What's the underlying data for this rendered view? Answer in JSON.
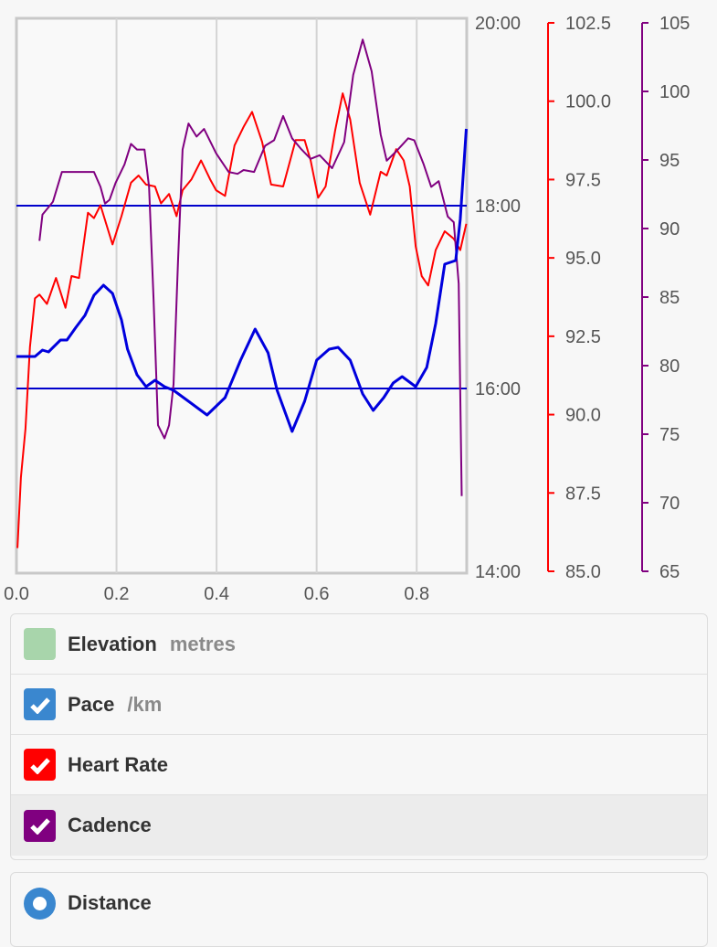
{
  "chart_data": {
    "type": "line",
    "xlim": [
      0,
      0.9
    ],
    "x_ticks": [
      "0.0",
      "0.2",
      "0.4",
      "0.6",
      "0.8"
    ],
    "x_tick_values": [
      0,
      0.2,
      0.4,
      0.6,
      0.8
    ],
    "axes": {
      "pace": {
        "ticks": [
          "20:00",
          "18:00",
          "16:00",
          "14:00"
        ],
        "tick_values": [
          20,
          18,
          16,
          14
        ],
        "range": [
          14,
          20
        ],
        "color": "#0000dd",
        "gridlines": [
          18,
          16
        ]
      },
      "heart_rate": {
        "ticks": [
          "102.5",
          "100.0",
          "97.5",
          "95.0",
          "92.5",
          "90.0",
          "87.5",
          "85.0"
        ],
        "tick_values": [
          102.5,
          100,
          97.5,
          95,
          92.5,
          90,
          87.5,
          85
        ],
        "range": [
          85,
          102.5
        ],
        "color": "#ff0000"
      },
      "cadence": {
        "ticks": [
          "105",
          "100",
          "95",
          "90",
          "85",
          "80",
          "75",
          "70",
          "65"
        ],
        "tick_values": [
          105,
          100,
          95,
          90,
          85,
          80,
          75,
          70,
          65
        ],
        "range": [
          65,
          105
        ],
        "color": "#800080"
      }
    },
    "series": [
      {
        "name": "Pace",
        "axis": "pace",
        "color": "#0000dd",
        "points": [
          [
            0,
            16.35
          ],
          [
            0.037,
            16.35
          ],
          [
            0.052,
            16.42
          ],
          [
            0.064,
            16.4
          ],
          [
            0.088,
            16.53
          ],
          [
            0.101,
            16.53
          ],
          [
            0.119,
            16.67
          ],
          [
            0.137,
            16.8
          ],
          [
            0.155,
            17.02
          ],
          [
            0.174,
            17.13
          ],
          [
            0.192,
            17.04
          ],
          [
            0.21,
            16.75
          ],
          [
            0.222,
            16.43
          ],
          [
            0.241,
            16.15
          ],
          [
            0.259,
            16.02
          ],
          [
            0.277,
            16.09
          ],
          [
            0.296,
            16.02
          ],
          [
            0.314,
            15.98
          ],
          [
            0.344,
            15.86
          ],
          [
            0.381,
            15.71
          ],
          [
            0.417,
            15.9
          ],
          [
            0.448,
            16.31
          ],
          [
            0.477,
            16.65
          ],
          [
            0.503,
            16.39
          ],
          [
            0.521,
            15.98
          ],
          [
            0.551,
            15.53
          ],
          [
            0.576,
            15.86
          ],
          [
            0.6,
            16.31
          ],
          [
            0.625,
            16.43
          ],
          [
            0.643,
            16.45
          ],
          [
            0.667,
            16.31
          ],
          [
            0.692,
            15.94
          ],
          [
            0.713,
            15.76
          ],
          [
            0.734,
            15.9
          ],
          [
            0.753,
            16.06
          ],
          [
            0.771,
            16.13
          ],
          [
            0.798,
            16.02
          ],
          [
            0.82,
            16.23
          ],
          [
            0.838,
            16.71
          ],
          [
            0.856,
            17.36
          ],
          [
            0.878,
            17.4
          ],
          [
            0.887,
            17.85
          ],
          [
            0.899,
            18.84
          ]
        ]
      },
      {
        "name": "Heart Rate",
        "axis": "heart_rate",
        "color": "#ff0000",
        "points": [
          [
            0.002,
            85.74
          ],
          [
            0.009,
            88.0
          ],
          [
            0.018,
            89.55
          ],
          [
            0.027,
            92.16
          ],
          [
            0.037,
            93.71
          ],
          [
            0.046,
            93.83
          ],
          [
            0.061,
            93.53
          ],
          [
            0.079,
            94.36
          ],
          [
            0.098,
            93.41
          ],
          [
            0.11,
            94.42
          ],
          [
            0.125,
            94.36
          ],
          [
            0.143,
            96.44
          ],
          [
            0.155,
            96.27
          ],
          [
            0.168,
            96.68
          ],
          [
            0.192,
            95.43
          ],
          [
            0.21,
            96.33
          ],
          [
            0.229,
            97.4
          ],
          [
            0.244,
            97.63
          ],
          [
            0.259,
            97.34
          ],
          [
            0.277,
            97.28
          ],
          [
            0.289,
            96.74
          ],
          [
            0.305,
            97.04
          ],
          [
            0.32,
            96.33
          ],
          [
            0.332,
            97.16
          ],
          [
            0.35,
            97.51
          ],
          [
            0.369,
            98.11
          ],
          [
            0.387,
            97.51
          ],
          [
            0.399,
            97.16
          ],
          [
            0.417,
            96.98
          ],
          [
            0.436,
            98.59
          ],
          [
            0.454,
            99.18
          ],
          [
            0.471,
            99.66
          ],
          [
            0.491,
            98.7
          ],
          [
            0.509,
            97.34
          ],
          [
            0.533,
            97.28
          ],
          [
            0.558,
            98.76
          ],
          [
            0.576,
            98.76
          ],
          [
            0.588,
            98.11
          ],
          [
            0.603,
            96.92
          ],
          [
            0.618,
            97.28
          ],
          [
            0.637,
            99.06
          ],
          [
            0.652,
            100.25
          ],
          [
            0.667,
            99.42
          ],
          [
            0.686,
            97.4
          ],
          [
            0.707,
            96.38
          ],
          [
            0.728,
            97.75
          ],
          [
            0.74,
            97.63
          ],
          [
            0.759,
            98.47
          ],
          [
            0.774,
            98.11
          ],
          [
            0.786,
            97.28
          ],
          [
            0.798,
            95.37
          ],
          [
            0.81,
            94.42
          ],
          [
            0.823,
            94.12
          ],
          [
            0.838,
            95.25
          ],
          [
            0.856,
            95.85
          ],
          [
            0.874,
            95.61
          ],
          [
            0.887,
            95.25
          ],
          [
            0.899,
            96.09
          ]
        ]
      },
      {
        "name": "Cadence",
        "axis": "cadence",
        "color": "#800080",
        "points": [
          [
            0.046,
            89.1
          ],
          [
            0.052,
            91.01
          ],
          [
            0.064,
            91.55
          ],
          [
            0.073,
            91.96
          ],
          [
            0.091,
            94.13
          ],
          [
            0.155,
            94.13
          ],
          [
            0.168,
            93.04
          ],
          [
            0.177,
            91.82
          ],
          [
            0.186,
            92.09
          ],
          [
            0.198,
            93.32
          ],
          [
            0.216,
            94.67
          ],
          [
            0.229,
            96.17
          ],
          [
            0.241,
            95.76
          ],
          [
            0.256,
            95.76
          ],
          [
            0.265,
            93.04
          ],
          [
            0.274,
            84.89
          ],
          [
            0.283,
            75.65
          ],
          [
            0.296,
            74.7
          ],
          [
            0.305,
            75.65
          ],
          [
            0.314,
            78.64
          ],
          [
            0.323,
            87.61
          ],
          [
            0.332,
            95.76
          ],
          [
            0.344,
            97.66
          ],
          [
            0.36,
            96.71
          ],
          [
            0.375,
            97.26
          ],
          [
            0.399,
            95.49
          ],
          [
            0.424,
            94.13
          ],
          [
            0.442,
            93.99
          ],
          [
            0.454,
            94.27
          ],
          [
            0.475,
            94.13
          ],
          [
            0.497,
            96.03
          ],
          [
            0.515,
            96.44
          ],
          [
            0.533,
            98.21
          ],
          [
            0.551,
            96.58
          ],
          [
            0.57,
            95.76
          ],
          [
            0.588,
            95.08
          ],
          [
            0.606,
            95.35
          ],
          [
            0.631,
            94.4
          ],
          [
            0.655,
            96.3
          ],
          [
            0.673,
            101.2
          ],
          [
            0.692,
            103.78
          ],
          [
            0.71,
            101.47
          ],
          [
            0.728,
            96.85
          ],
          [
            0.74,
            94.95
          ],
          [
            0.759,
            95.63
          ],
          [
            0.783,
            96.58
          ],
          [
            0.795,
            96.44
          ],
          [
            0.814,
            94.67
          ],
          [
            0.829,
            93.04
          ],
          [
            0.844,
            93.45
          ],
          [
            0.862,
            90.87
          ],
          [
            0.874,
            90.46
          ],
          [
            0.884,
            85.98
          ],
          [
            0.89,
            70.49
          ]
        ]
      }
    ]
  },
  "legend": {
    "items": [
      {
        "label": "Elevation",
        "unit": "metres",
        "color": "#a8d5ab",
        "checked": false
      },
      {
        "label": "Pace",
        "unit": "/km",
        "color": "#3a87cf",
        "checked": true
      },
      {
        "label": "Heart Rate",
        "unit": "",
        "color": "#ff0000",
        "checked": true
      },
      {
        "label": "Cadence",
        "unit": "",
        "color": "#800080",
        "checked": true
      }
    ],
    "x_axis_option": {
      "label": "Distance",
      "color": "#3a87cf",
      "selected": true
    }
  }
}
